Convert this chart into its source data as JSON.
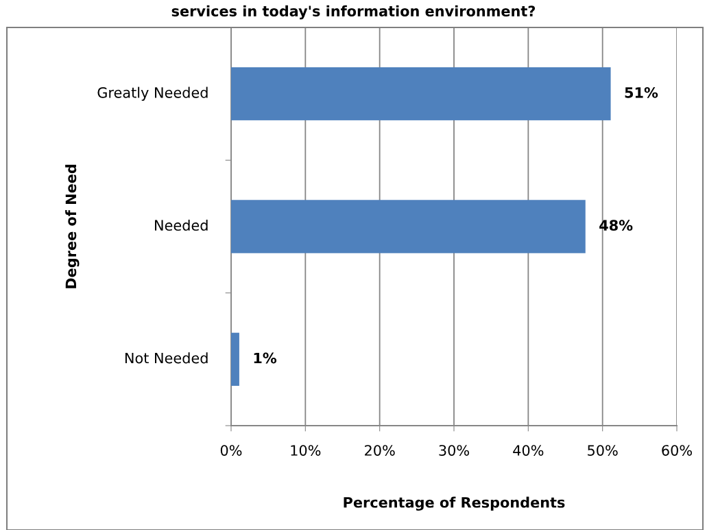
{
  "chart_data": {
    "type": "bar",
    "orientation": "horizontal",
    "title": "services in today's information environment?",
    "xlabel": "Percentage of Respondents",
    "ylabel": "Degree of Need",
    "categories": [
      "Greatly Needed",
      "Needed",
      "Not Needed"
    ],
    "values": [
      51.1,
      47.7,
      1.1
    ],
    "value_labels": [
      "51%",
      "48%",
      "1%"
    ],
    "color": "#4f81bd",
    "xlim": [
      0,
      60
    ],
    "xticks": [
      {
        "value": 0,
        "label": "0%"
      },
      {
        "value": 10,
        "label": "10%"
      },
      {
        "value": 20,
        "label": "20%"
      },
      {
        "value": 30,
        "label": "30%"
      },
      {
        "value": 40,
        "label": "40%"
      },
      {
        "value": 50,
        "label": "50%"
      },
      {
        "value": 60,
        "label": "60%"
      }
    ],
    "grid": "x"
  }
}
